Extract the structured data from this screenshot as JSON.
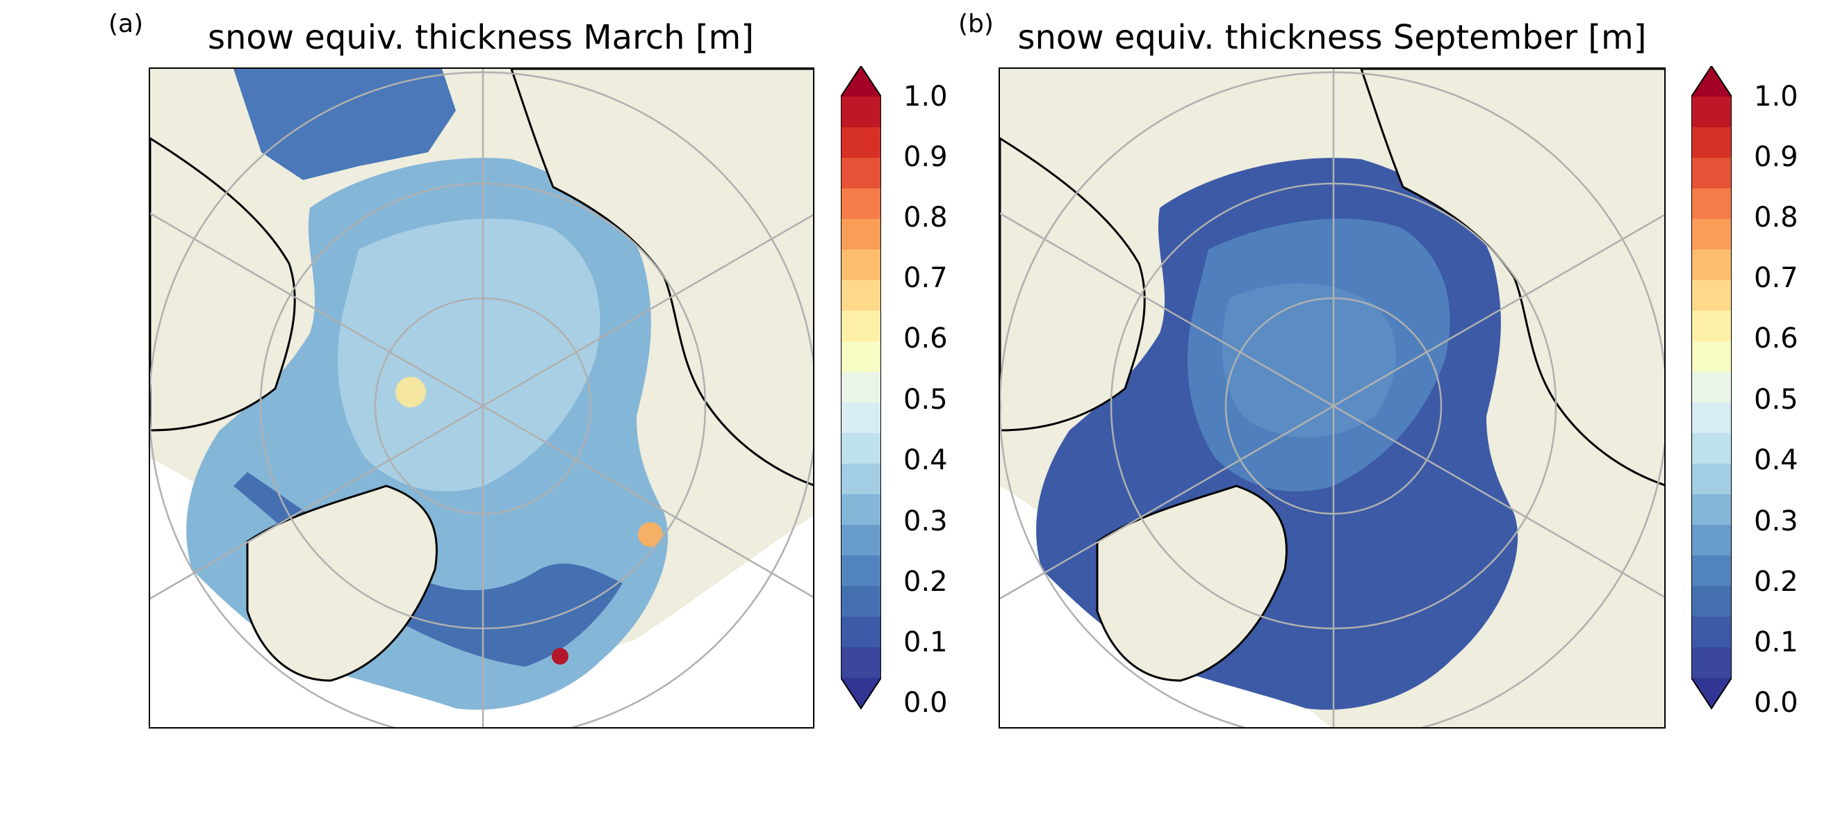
{
  "panels": [
    {
      "label": "(a)",
      "title": "snow equiv. thickness March [m]",
      "colorbar": {
        "ticks": [
          "0.0",
          "0.1",
          "0.2",
          "0.3",
          "0.4",
          "0.5",
          "0.6",
          "0.7",
          "0.8",
          "0.9",
          "1.0"
        ],
        "range": [
          0.0,
          1.0
        ],
        "extend": "both",
        "colormap": "RdYlBu_r"
      }
    },
    {
      "label": "(b)",
      "title": "snow equiv. thickness September [m]",
      "colorbar": {
        "ticks": [
          "0.0",
          "0.1",
          "0.2",
          "0.3",
          "0.4",
          "0.5",
          "0.6",
          "0.7",
          "0.8",
          "0.9",
          "1.0"
        ],
        "range": [
          0.0,
          1.0
        ],
        "extend": "both",
        "colormap": "RdYlBu_r"
      }
    }
  ],
  "colors": {
    "land": "#eeedde",
    "ocean_no_data": "#ffffff",
    "gridline": "#b0b0b0",
    "coastline": "#000000"
  }
}
